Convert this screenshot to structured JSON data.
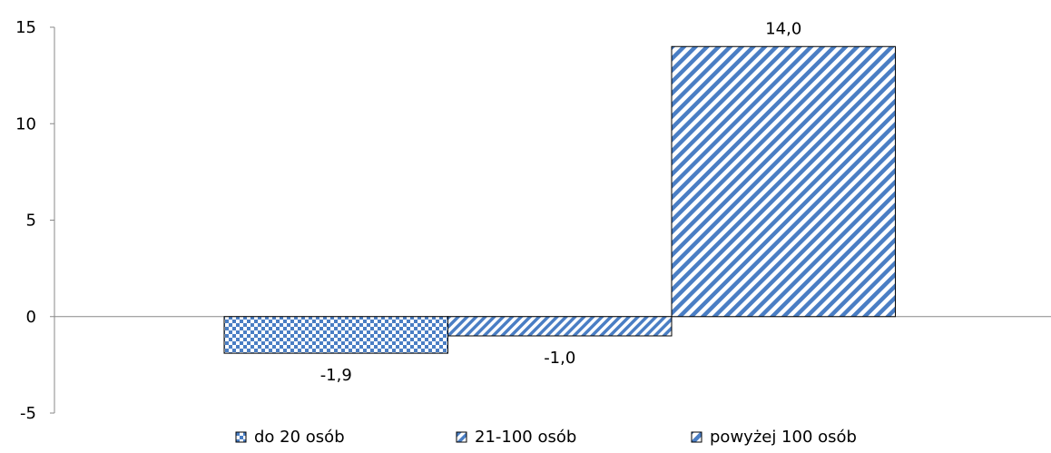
{
  "chart_data": {
    "type": "bar",
    "title": "",
    "xlabel": "",
    "ylabel": "",
    "ylim": [
      -5,
      15
    ],
    "yticks": [
      15,
      10,
      5,
      0,
      -5
    ],
    "grid": false,
    "legend_position": "bottom",
    "series": [
      {
        "name": "do 20 osób",
        "value": -1.9,
        "label": "-1,9",
        "pattern": "checker"
      },
      {
        "name": "21-100 osób",
        "value": -1.0,
        "label": "-1,0",
        "pattern": "diag-dense"
      },
      {
        "name": "powyżej 100 osób",
        "value": 14.0,
        "label": "14,0",
        "pattern": "diag-wide"
      }
    ],
    "colors": {
      "pattern": "#4a7ec4",
      "background": "#ffffff",
      "axis": "#888888",
      "outline": "#000000"
    }
  }
}
